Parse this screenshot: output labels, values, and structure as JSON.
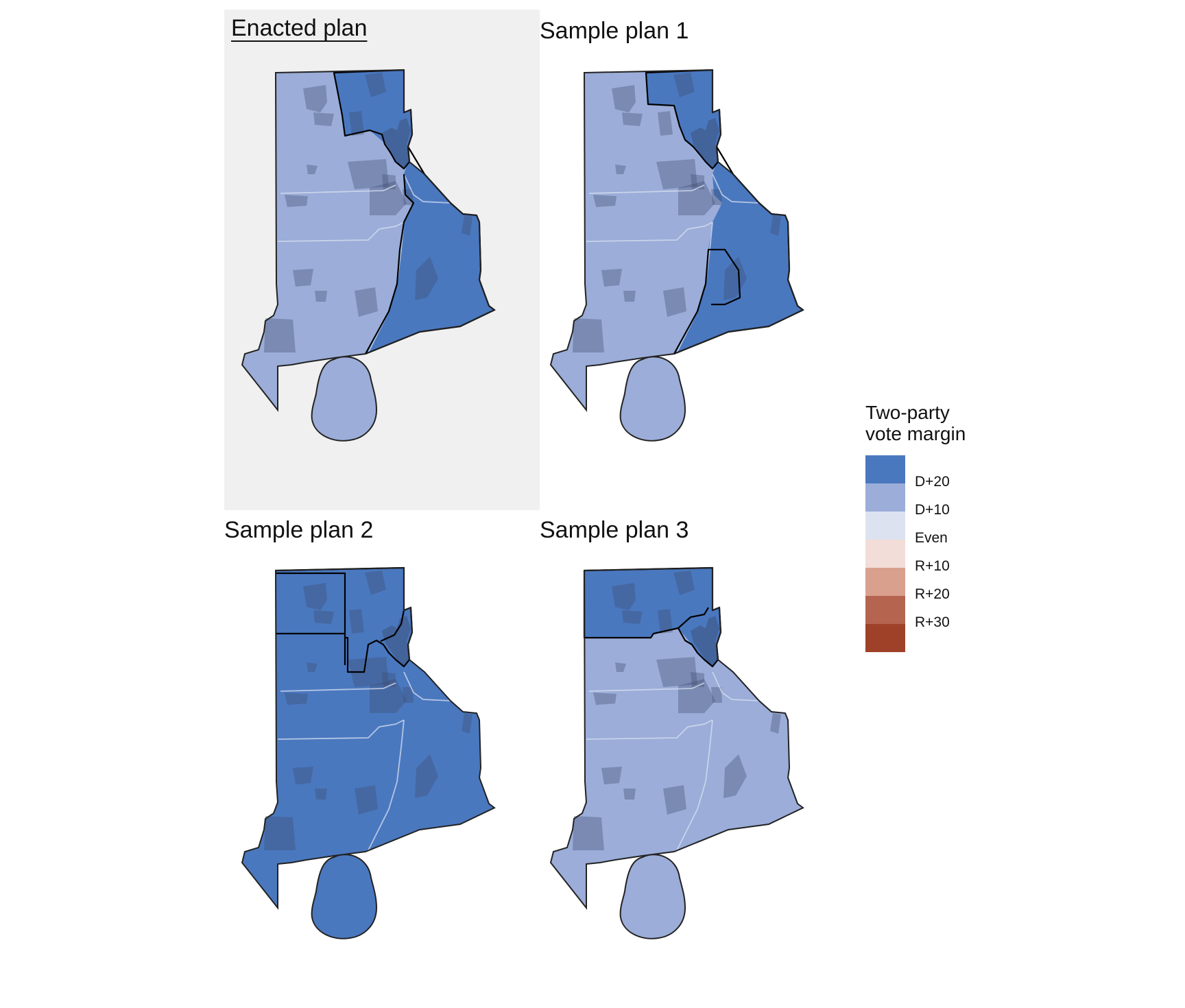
{
  "panels": [
    {
      "title": "Enacted plan",
      "plan": "enacted",
      "highlighted": true
    },
    {
      "title": "Sample plan 1",
      "plan": "sample1",
      "highlighted": false
    },
    {
      "title": "Sample plan 2",
      "plan": "sample2",
      "highlighted": false
    },
    {
      "title": "Sample plan 3",
      "plan": "sample3",
      "highlighted": false
    }
  ],
  "legend": {
    "title_line1": "Two-party",
    "title_line2": "vote margin",
    "labels": [
      "D+20",
      "D+10",
      "Even",
      "R+10",
      "R+20",
      "R+30"
    ],
    "colors": [
      "#4a78bf",
      "#9badd8",
      "#dde2f0",
      "#f2ddd8",
      "#d9a08e",
      "#b56450",
      "#9e4128"
    ]
  },
  "colors": {
    "outline": "#222222",
    "district_line": "#000000",
    "county_line": "#d8e0f2",
    "town_overlay": "#3c4a6e",
    "highlight_background": "#f0f0f0"
  }
}
